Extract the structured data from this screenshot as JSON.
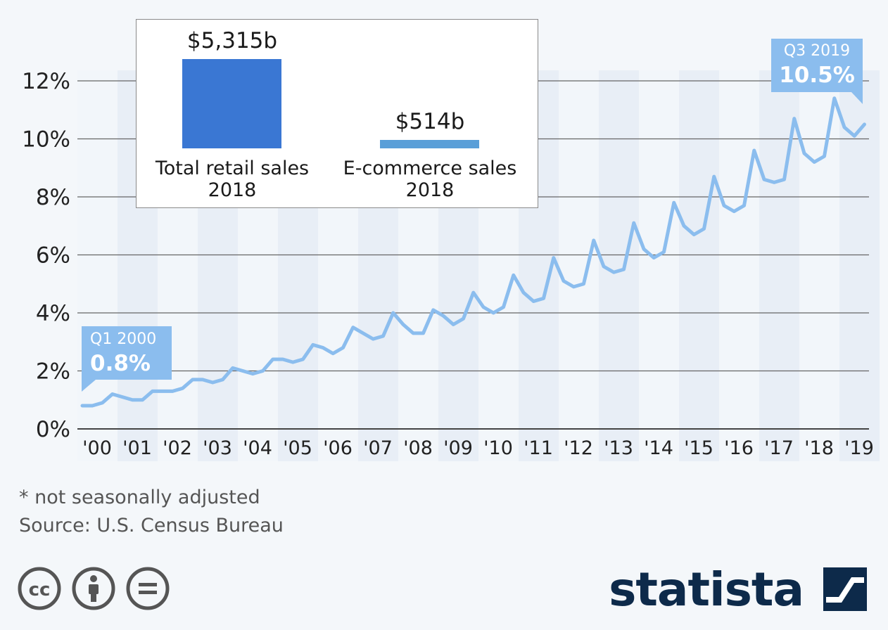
{
  "chart_data": {
    "type": "line",
    "x_tick_labels": [
      "'00",
      "'01",
      "'02",
      "'03",
      "'04",
      "'05",
      "'06",
      "'07",
      "'08",
      "'09",
      "'10",
      "'11",
      "'12",
      "'13",
      "'14",
      "'15",
      "'16",
      "'17",
      "'18",
      "'19"
    ],
    "y_tick_labels": [
      "0%",
      "2%",
      "4%",
      "6%",
      "8%",
      "10%",
      "12%"
    ],
    "ylim": [
      0,
      12
    ],
    "grid": true,
    "x_start": "Q1 2000",
    "x_end": "Q3 2019",
    "values": [
      0.8,
      0.8,
      0.9,
      1.2,
      1.1,
      1.0,
      1.0,
      1.3,
      1.3,
      1.3,
      1.4,
      1.7,
      1.7,
      1.6,
      1.7,
      2.1,
      2.0,
      1.9,
      2.0,
      2.4,
      2.4,
      2.3,
      2.4,
      2.9,
      2.8,
      2.6,
      2.8,
      3.5,
      3.3,
      3.1,
      3.2,
      4.0,
      3.6,
      3.3,
      3.3,
      4.1,
      3.9,
      3.6,
      3.8,
      4.7,
      4.2,
      4.0,
      4.2,
      5.3,
      4.7,
      4.4,
      4.5,
      5.9,
      5.1,
      4.9,
      5.0,
      6.5,
      5.6,
      5.4,
      5.5,
      7.1,
      6.2,
      5.9,
      6.1,
      7.8,
      7.0,
      6.7,
      6.9,
      8.7,
      7.7,
      7.5,
      7.7,
      9.6,
      8.6,
      8.5,
      8.6,
      10.7,
      9.5,
      9.2,
      9.4,
      11.4,
      10.4,
      10.1,
      10.5
    ],
    "line_color": "#8bbdee",
    "annotations": [
      {
        "label": "Q1 2000",
        "value": "0.8%"
      },
      {
        "label": "Q3 2019",
        "value": "10.5%"
      }
    ]
  },
  "inset": {
    "bars": [
      {
        "value": 5315,
        "value_label": "$5,315b",
        "label_line1": "Total retail sales",
        "label_line2": "2018",
        "color": "#3a77d3"
      },
      {
        "value": 514,
        "value_label": "$514b",
        "label_line1": "E-commerce sales",
        "label_line2": "2018",
        "color": "#5a9fd8"
      }
    ]
  },
  "footer": {
    "note": "* not seasonally adjusted",
    "source": "Source: U.S. Census Bureau",
    "license_icons": [
      "cc-icon",
      "attribution-icon",
      "no-derivatives-icon"
    ],
    "brand": "statista"
  }
}
